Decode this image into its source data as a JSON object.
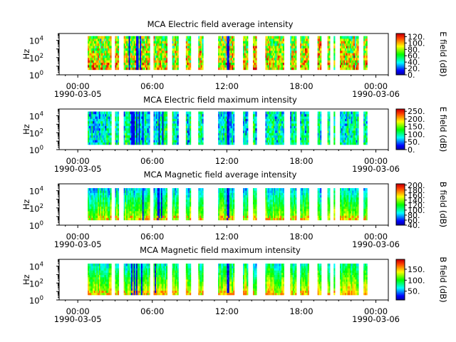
{
  "time_axis": {
    "tick_labels": [
      "00:00",
      "06:00",
      "12:00",
      "18:00",
      "00:00"
    ],
    "tick_hours": [
      0,
      6,
      12,
      18,
      24
    ],
    "minor_step_hours": 1,
    "xlim_hours": [
      -1.5,
      25
    ],
    "start_date": "1990-03-05",
    "end_date": "1990-03-06"
  },
  "freq_axis": {
    "label": "Hz",
    "ticks": [
      {
        "base": "10",
        "exp": "0",
        "log": 0
      },
      {
        "base": "10",
        "exp": "2",
        "log": 2
      },
      {
        "base": "10",
        "exp": "4",
        "log": 4
      }
    ],
    "ylim_log10": [
      0,
      4.8
    ]
  },
  "data_intervals_hours": [
    [
      0.8,
      2.7
    ],
    [
      3.0,
      3.3
    ],
    [
      3.7,
      5.8
    ],
    [
      6.1,
      7.2
    ],
    [
      7.6,
      8.1
    ],
    [
      8.7,
      9.1
    ],
    [
      9.7,
      10.1
    ],
    [
      11.3,
      12.6
    ],
    [
      13.3,
      13.7
    ],
    [
      14.1,
      14.4
    ],
    [
      15.1,
      16.6
    ],
    [
      17.1,
      17.6
    ],
    [
      17.9,
      18.6
    ],
    [
      19.3,
      19.6
    ],
    [
      20.1,
      20.3
    ],
    [
      20.6,
      20.7
    ],
    [
      21.1,
      22.6
    ],
    [
      23.0,
      23.3
    ]
  ],
  "colorscale": [
    "#0000a0",
    "#0000ff",
    "#0080ff",
    "#00ffff",
    "#00ff80",
    "#00ff00",
    "#80ff00",
    "#ffff00",
    "#ffa000",
    "#ff4000",
    "#cc0000"
  ],
  "chart_data": [
    {
      "type": "heatmap",
      "title": "MCA  Electric field average intensity",
      "ylabel": "Hz",
      "colorbar_label": "E field (dB)",
      "colorbar_ticks": [
        "0.",
        "20.",
        "40.",
        "60.",
        "80.",
        "100.",
        "120."
      ],
      "colorbar_tick_values": [
        0,
        20,
        40,
        60,
        80,
        100,
        120
      ],
      "zlim": [
        0,
        130
      ],
      "freq_range_log10": [
        0.6,
        4.5
      ],
      "typical_level_db": 75
    },
    {
      "type": "heatmap",
      "title": "MCA  Electric field maximum intensity",
      "ylabel": "Hz",
      "colorbar_label": "E field (dB)",
      "colorbar_ticks": [
        "0.",
        "50.",
        "100.",
        "150.",
        "200.",
        "250."
      ],
      "colorbar_tick_values": [
        0,
        50,
        100,
        150,
        200,
        250
      ],
      "zlim": [
        0,
        265
      ],
      "freq_range_log10": [
        0.6,
        4.5
      ],
      "typical_level_db": 100
    },
    {
      "type": "heatmap",
      "title": "MCA  Magnetic field average intensity",
      "ylabel": "Hz",
      "colorbar_label": "B field (dB)",
      "colorbar_ticks": [
        "40.",
        "60.",
        "80.",
        "100.",
        "120.",
        "140.",
        "160.",
        "180.",
        "200."
      ],
      "colorbar_tick_values": [
        40,
        60,
        80,
        100,
        120,
        140,
        160,
        180,
        200
      ],
      "zlim": [
        40,
        205
      ],
      "freq_range_log10": [
        0.6,
        4.3
      ],
      "typical_level_db": 105
    },
    {
      "type": "heatmap",
      "title": "MCA  Magnetic field maximum intensity",
      "ylabel": "Hz",
      "colorbar_label": "B field (dB)",
      "colorbar_ticks": [
        "50.",
        "100.",
        "150."
      ],
      "colorbar_tick_values": [
        50,
        100,
        150
      ],
      "zlim": [
        10,
        195
      ],
      "freq_range_log10": [
        0.6,
        4.3
      ],
      "typical_level_db": 95
    }
  ]
}
